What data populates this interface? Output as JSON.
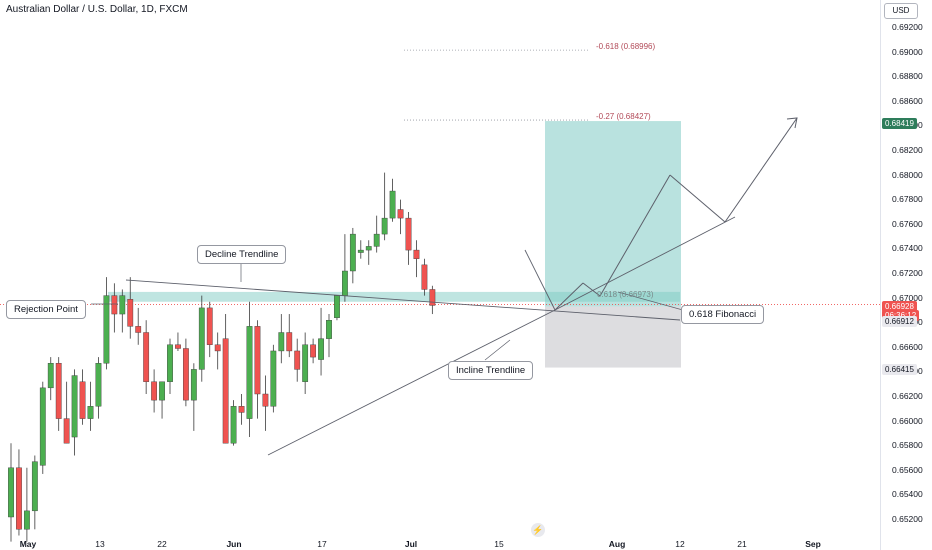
{
  "header": {
    "symbol_title": "Australian Dollar / U.S. Dollar, 1D, FXCM"
  },
  "axis": {
    "currency": "USD",
    "ticks": [
      "0.69200",
      "0.69000",
      "0.68800",
      "0.68600",
      "0.68400",
      "0.68200",
      "0.68000",
      "0.67800",
      "0.67600",
      "0.67400",
      "0.67200",
      "0.67000",
      "0.66800",
      "0.66600",
      "0.66400",
      "0.66200",
      "0.66000",
      "0.65800",
      "0.65600",
      "0.65400",
      "0.65200"
    ],
    "price_labels": {
      "target": "0.68419",
      "last": "0.66928",
      "countdown": "06:36:12",
      "level": "0.66912",
      "stop": "0.66415"
    },
    "x_ticks": [
      "May",
      "13",
      "22",
      "Jun",
      "17",
      "Jul",
      "15",
      "Aug",
      "12",
      "21",
      "Sep"
    ]
  },
  "annotations": {
    "decline_trendline": "Decline Trendline",
    "rejection_point": "Rejection Point",
    "incline_trendline": "Incline Trendline",
    "fibonacci": "0.618 Fibonacci",
    "fib_neg618": "-0.618 (0.68996)",
    "fib_neg27": "-0.27 (0.68427)",
    "fib_618": "0.618 (0.66973)"
  },
  "colors": {
    "up": "#26a69a",
    "down": "#ef5350",
    "up_body": "#4caf50",
    "zone": "#80cbc4",
    "target_label": "#2e7d5b",
    "last_label": "#ef5350"
  },
  "chart_data": {
    "type": "candlestick",
    "title": "Australian Dollar / U.S. Dollar, 1D, FXCM",
    "ylim": [
      0.6508,
      0.6935
    ],
    "bars": [
      {
        "o": 0.652,
        "h": 0.658,
        "l": 0.65,
        "c": 0.656
      },
      {
        "o": 0.656,
        "h": 0.6575,
        "l": 0.6505,
        "c": 0.651
      },
      {
        "o": 0.651,
        "h": 0.656,
        "l": 0.65,
        "c": 0.6525
      },
      {
        "o": 0.6525,
        "h": 0.657,
        "l": 0.651,
        "c": 0.6565
      },
      {
        "o": 0.6562,
        "h": 0.663,
        "l": 0.6555,
        "c": 0.6625
      },
      {
        "o": 0.6625,
        "h": 0.665,
        "l": 0.6615,
        "c": 0.6645
      },
      {
        "o": 0.6645,
        "h": 0.665,
        "l": 0.659,
        "c": 0.66
      },
      {
        "o": 0.66,
        "h": 0.663,
        "l": 0.658,
        "c": 0.658
      },
      {
        "o": 0.6585,
        "h": 0.664,
        "l": 0.657,
        "c": 0.6635
      },
      {
        "o": 0.663,
        "h": 0.664,
        "l": 0.6595,
        "c": 0.66
      },
      {
        "o": 0.66,
        "h": 0.663,
        "l": 0.659,
        "c": 0.661
      },
      {
        "o": 0.661,
        "h": 0.665,
        "l": 0.66,
        "c": 0.6645
      },
      {
        "o": 0.6645,
        "h": 0.6715,
        "l": 0.664,
        "c": 0.67
      },
      {
        "o": 0.67,
        "h": 0.671,
        "l": 0.667,
        "c": 0.6685
      },
      {
        "o": 0.6685,
        "h": 0.6705,
        "l": 0.667,
        "c": 0.67
      },
      {
        "o": 0.6697,
        "h": 0.6715,
        "l": 0.6665,
        "c": 0.6675
      },
      {
        "o": 0.6675,
        "h": 0.669,
        "l": 0.666,
        "c": 0.667
      },
      {
        "o": 0.667,
        "h": 0.668,
        "l": 0.662,
        "c": 0.663
      },
      {
        "o": 0.663,
        "h": 0.664,
        "l": 0.6605,
        "c": 0.6615
      },
      {
        "o": 0.6615,
        "h": 0.663,
        "l": 0.66,
        "c": 0.663
      },
      {
        "o": 0.663,
        "h": 0.6665,
        "l": 0.662,
        "c": 0.666
      },
      {
        "o": 0.666,
        "h": 0.667,
        "l": 0.6655,
        "c": 0.6657
      },
      {
        "o": 0.6657,
        "h": 0.6665,
        "l": 0.661,
        "c": 0.6615
      },
      {
        "o": 0.6615,
        "h": 0.6645,
        "l": 0.659,
        "c": 0.664
      },
      {
        "o": 0.664,
        "h": 0.67,
        "l": 0.663,
        "c": 0.669
      },
      {
        "o": 0.669,
        "h": 0.6695,
        "l": 0.665,
        "c": 0.666
      },
      {
        "o": 0.666,
        "h": 0.667,
        "l": 0.664,
        "c": 0.6655
      },
      {
        "o": 0.6665,
        "h": 0.6685,
        "l": 0.658,
        "c": 0.658
      },
      {
        "o": 0.658,
        "h": 0.6615,
        "l": 0.6578,
        "c": 0.661
      },
      {
        "o": 0.661,
        "h": 0.662,
        "l": 0.6595,
        "c": 0.6605
      },
      {
        "o": 0.66,
        "h": 0.6695,
        "l": 0.6585,
        "c": 0.6675
      },
      {
        "o": 0.6675,
        "h": 0.668,
        "l": 0.66,
        "c": 0.662
      },
      {
        "o": 0.662,
        "h": 0.6635,
        "l": 0.659,
        "c": 0.661
      },
      {
        "o": 0.661,
        "h": 0.666,
        "l": 0.6605,
        "c": 0.6655
      },
      {
        "o": 0.6655,
        "h": 0.6685,
        "l": 0.6645,
        "c": 0.667
      },
      {
        "o": 0.667,
        "h": 0.6685,
        "l": 0.665,
        "c": 0.6655
      },
      {
        "o": 0.6655,
        "h": 0.6665,
        "l": 0.663,
        "c": 0.664
      },
      {
        "o": 0.663,
        "h": 0.667,
        "l": 0.662,
        "c": 0.666
      },
      {
        "o": 0.666,
        "h": 0.6665,
        "l": 0.6645,
        "c": 0.665
      },
      {
        "o": 0.6648,
        "h": 0.669,
        "l": 0.6635,
        "c": 0.6665
      },
      {
        "o": 0.6665,
        "h": 0.6685,
        "l": 0.665,
        "c": 0.668
      },
      {
        "o": 0.6682,
        "h": 0.67,
        "l": 0.668,
        "c": 0.67
      },
      {
        "o": 0.67,
        "h": 0.675,
        "l": 0.6695,
        "c": 0.672
      },
      {
        "o": 0.672,
        "h": 0.6755,
        "l": 0.671,
        "c": 0.675
      },
      {
        "o": 0.6735,
        "h": 0.6745,
        "l": 0.673,
        "c": 0.6737
      },
      {
        "o": 0.6737,
        "h": 0.6745,
        "l": 0.6725,
        "c": 0.674
      },
      {
        "o": 0.674,
        "h": 0.6765,
        "l": 0.6735,
        "c": 0.675
      },
      {
        "o": 0.675,
        "h": 0.68,
        "l": 0.6745,
        "c": 0.6763
      },
      {
        "o": 0.6763,
        "h": 0.6795,
        "l": 0.676,
        "c": 0.6785
      },
      {
        "o": 0.677,
        "h": 0.6778,
        "l": 0.675,
        "c": 0.6763
      },
      {
        "o": 0.6763,
        "h": 0.6768,
        "l": 0.6725,
        "c": 0.6737
      },
      {
        "o": 0.6737,
        "h": 0.6745,
        "l": 0.6715,
        "c": 0.673
      },
      {
        "o": 0.6725,
        "h": 0.673,
        "l": 0.67,
        "c": 0.6705
      },
      {
        "o": 0.6705,
        "h": 0.6708,
        "l": 0.6685,
        "c": 0.6692
      }
    ],
    "zones": {
      "resistance": [
        0.6695,
        0.6703
      ],
      "target": 0.68419,
      "entry": 0.66912,
      "stop": 0.66415
    },
    "fib_levels": {
      "-0.618": 0.68996,
      "-0.27": 0.68427,
      "0.618": 0.66973
    }
  }
}
